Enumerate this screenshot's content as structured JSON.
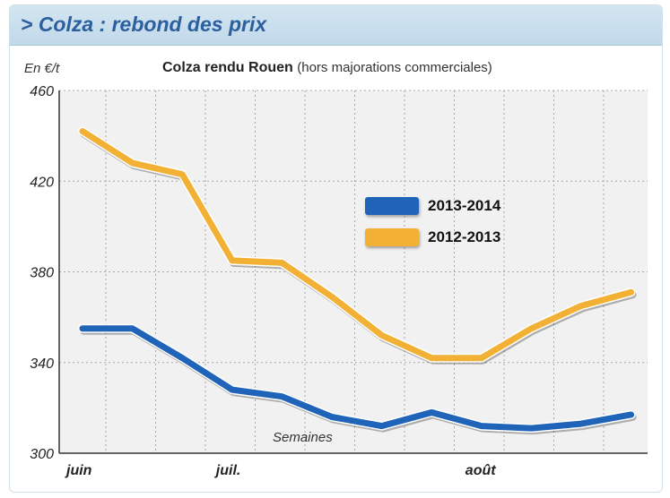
{
  "banner_title": "> Colza : rebond des prix",
  "colors": {
    "series_2013_2014": "#1f64b8",
    "series_2012_2013": "#f2b135",
    "plot_bg": "#f1f1f1",
    "grid": "#a8a8a8"
  },
  "chart_data": {
    "type": "line",
    "title": "Colza rendu Rouen",
    "subtitle": "(hors majorations commerciales)",
    "ylabel": "En €/t",
    "xlabel": "Semaines",
    "ylim": [
      300,
      460
    ],
    "yticks": [
      300,
      340,
      380,
      420,
      460
    ],
    "x_labels": [
      {
        "label": "juin",
        "week": 0
      },
      {
        "label": "juil.",
        "week": 3
      },
      {
        "label": "août",
        "week": 8
      }
    ],
    "weeks": [
      0,
      1,
      2,
      3,
      4,
      5,
      6,
      7,
      8,
      9,
      10,
      11
    ],
    "grid": true,
    "legend_position": "center-right",
    "series": [
      {
        "name": "2013-2014",
        "color": "#1f64b8",
        "values": [
          355,
          355,
          342,
          328,
          325,
          316,
          312,
          318,
          312,
          311,
          313,
          317
        ]
      },
      {
        "name": "2012-2013",
        "color": "#f2b135",
        "values": [
          442,
          428,
          423,
          385,
          384,
          369,
          352,
          342,
          342,
          355,
          365,
          371
        ]
      }
    ]
  }
}
